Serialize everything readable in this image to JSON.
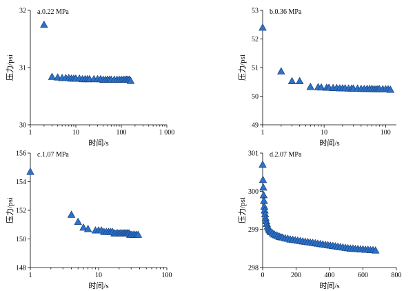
{
  "chart_data": [
    {
      "type": "scatter",
      "panel_label": "a.0.22 MPa",
      "xlabel": "时间/s",
      "ylabel": "压力/psi",
      "xscale": "log",
      "xlim": [
        1,
        1000
      ],
      "ylim": [
        30,
        32
      ],
      "xticks": [
        1,
        10,
        100,
        1000
      ],
      "xtick_labels": [
        "1",
        "10",
        "100",
        "1 000"
      ],
      "yticks": [
        30,
        31,
        32
      ],
      "ytick_labels": [
        "30",
        "31",
        "32"
      ],
      "x": [
        2,
        3,
        4,
        5,
        6,
        7,
        8,
        9,
        10,
        12,
        14,
        16,
        18,
        20,
        25,
        30,
        35,
        40,
        45,
        50,
        55,
        60,
        70,
        80,
        90,
        100,
        110,
        120,
        130,
        140,
        150,
        160
      ],
      "y": [
        31.75,
        30.84,
        30.83,
        30.82,
        30.82,
        30.82,
        30.81,
        30.81,
        30.81,
        30.81,
        30.8,
        30.8,
        30.8,
        30.8,
        30.8,
        30.8,
        30.8,
        30.79,
        30.79,
        30.79,
        30.79,
        30.79,
        30.79,
        30.79,
        30.79,
        30.79,
        30.79,
        30.79,
        30.79,
        30.79,
        30.79,
        30.77
      ]
    },
    {
      "type": "scatter",
      "panel_label": "b.0.36 MPa",
      "xlabel": "时间/s",
      "ylabel": "压力/psi",
      "xscale": "log",
      "xlim": [
        1,
        150
      ],
      "ylim": [
        49,
        53
      ],
      "xticks": [
        1,
        10,
        100
      ],
      "xtick_labels": [
        "1",
        "10",
        "100"
      ],
      "yticks": [
        49,
        50,
        51,
        52,
        53
      ],
      "ytick_labels": [
        "49",
        "50",
        "51",
        "52",
        "53"
      ],
      "x": [
        1,
        2,
        3,
        4,
        6,
        8,
        9,
        11,
        12,
        14,
        16,
        18,
        20,
        22,
        25,
        28,
        30,
        35,
        40,
        45,
        50,
        55,
        60,
        65,
        70,
        75,
        80,
        90,
        100,
        110,
        120
      ],
      "y": [
        52.4,
        50.87,
        50.53,
        50.53,
        50.33,
        50.32,
        50.31,
        50.3,
        50.3,
        50.29,
        50.29,
        50.28,
        50.28,
        50.28,
        50.27,
        50.27,
        50.27,
        50.27,
        50.26,
        50.26,
        50.26,
        50.26,
        50.26,
        50.25,
        50.25,
        50.25,
        50.25,
        50.25,
        50.25,
        50.25,
        50.23
      ]
    },
    {
      "type": "scatter",
      "panel_label": "c.1.07 MPa",
      "xlabel": "时间/s",
      "ylabel": "压力/psi",
      "xscale": "log",
      "xlim": [
        1,
        100
      ],
      "ylim": [
        148,
        156
      ],
      "xticks": [
        1,
        10,
        100
      ],
      "xtick_labels": [
        "1",
        "10",
        "100"
      ],
      "yticks": [
        148,
        150,
        152,
        154,
        156
      ],
      "ytick_labels": [
        "148",
        "150",
        "152",
        "154",
        "156"
      ],
      "x": [
        1,
        4,
        5,
        6,
        7,
        9,
        10,
        11,
        12,
        13,
        14,
        15,
        16,
        17,
        18,
        19,
        20,
        21,
        22,
        23,
        24,
        25,
        26,
        27,
        28,
        29,
        30,
        32,
        34,
        36,
        38
      ],
      "y": [
        154.7,
        151.7,
        151.2,
        150.8,
        150.7,
        150.6,
        150.6,
        150.6,
        150.5,
        150.5,
        150.5,
        150.5,
        150.5,
        150.4,
        150.4,
        150.4,
        150.4,
        150.4,
        150.4,
        150.4,
        150.4,
        150.4,
        150.4,
        150.4,
        150.4,
        150.3,
        150.3,
        150.3,
        150.3,
        150.3,
        150.3
      ]
    },
    {
      "type": "scatter",
      "panel_label": "d.2.07 MPa",
      "xlabel": "时间/s",
      "ylabel": "压力/psi",
      "xscale": "linear",
      "xlim": [
        0,
        800
      ],
      "ylim": [
        298,
        301
      ],
      "xticks": [
        0,
        200,
        400,
        600,
        800
      ],
      "xtick_labels": [
        "0",
        "200",
        "400",
        "600",
        "800"
      ],
      "yticks": [
        298,
        299,
        300,
        301
      ],
      "ytick_labels": [
        "298",
        "299",
        "300",
        "301"
      ],
      "x": [
        0,
        2,
        4,
        6,
        8,
        10,
        12,
        15,
        18,
        21,
        25,
        30,
        35,
        40,
        45,
        50,
        60,
        70,
        80,
        90,
        100,
        110,
        120,
        135,
        150,
        165,
        180,
        195,
        210,
        225,
        240,
        255,
        270,
        285,
        300,
        315,
        330,
        345,
        360,
        375,
        390,
        405,
        420,
        435,
        450,
        465,
        480,
        495,
        510,
        525,
        540,
        555,
        570,
        585,
        600,
        615,
        630,
        645,
        660,
        675
      ],
      "y": [
        300.7,
        300.3,
        300.1,
        299.9,
        299.75,
        299.6,
        299.5,
        299.4,
        299.3,
        299.22,
        299.15,
        299.08,
        299.03,
        298.99,
        298.96,
        298.93,
        298.9,
        298.87,
        298.85,
        298.83,
        298.81,
        298.8,
        298.79,
        298.77,
        298.76,
        298.74,
        298.73,
        298.72,
        298.71,
        298.7,
        298.69,
        298.68,
        298.67,
        298.66,
        298.65,
        298.64,
        298.63,
        298.62,
        298.61,
        298.6,
        298.59,
        298.58,
        298.57,
        298.56,
        298.55,
        298.54,
        298.53,
        298.52,
        298.51,
        298.5,
        298.5,
        298.49,
        298.49,
        298.48,
        298.48,
        298.47,
        298.47,
        298.46,
        298.46,
        298.45
      ]
    }
  ]
}
